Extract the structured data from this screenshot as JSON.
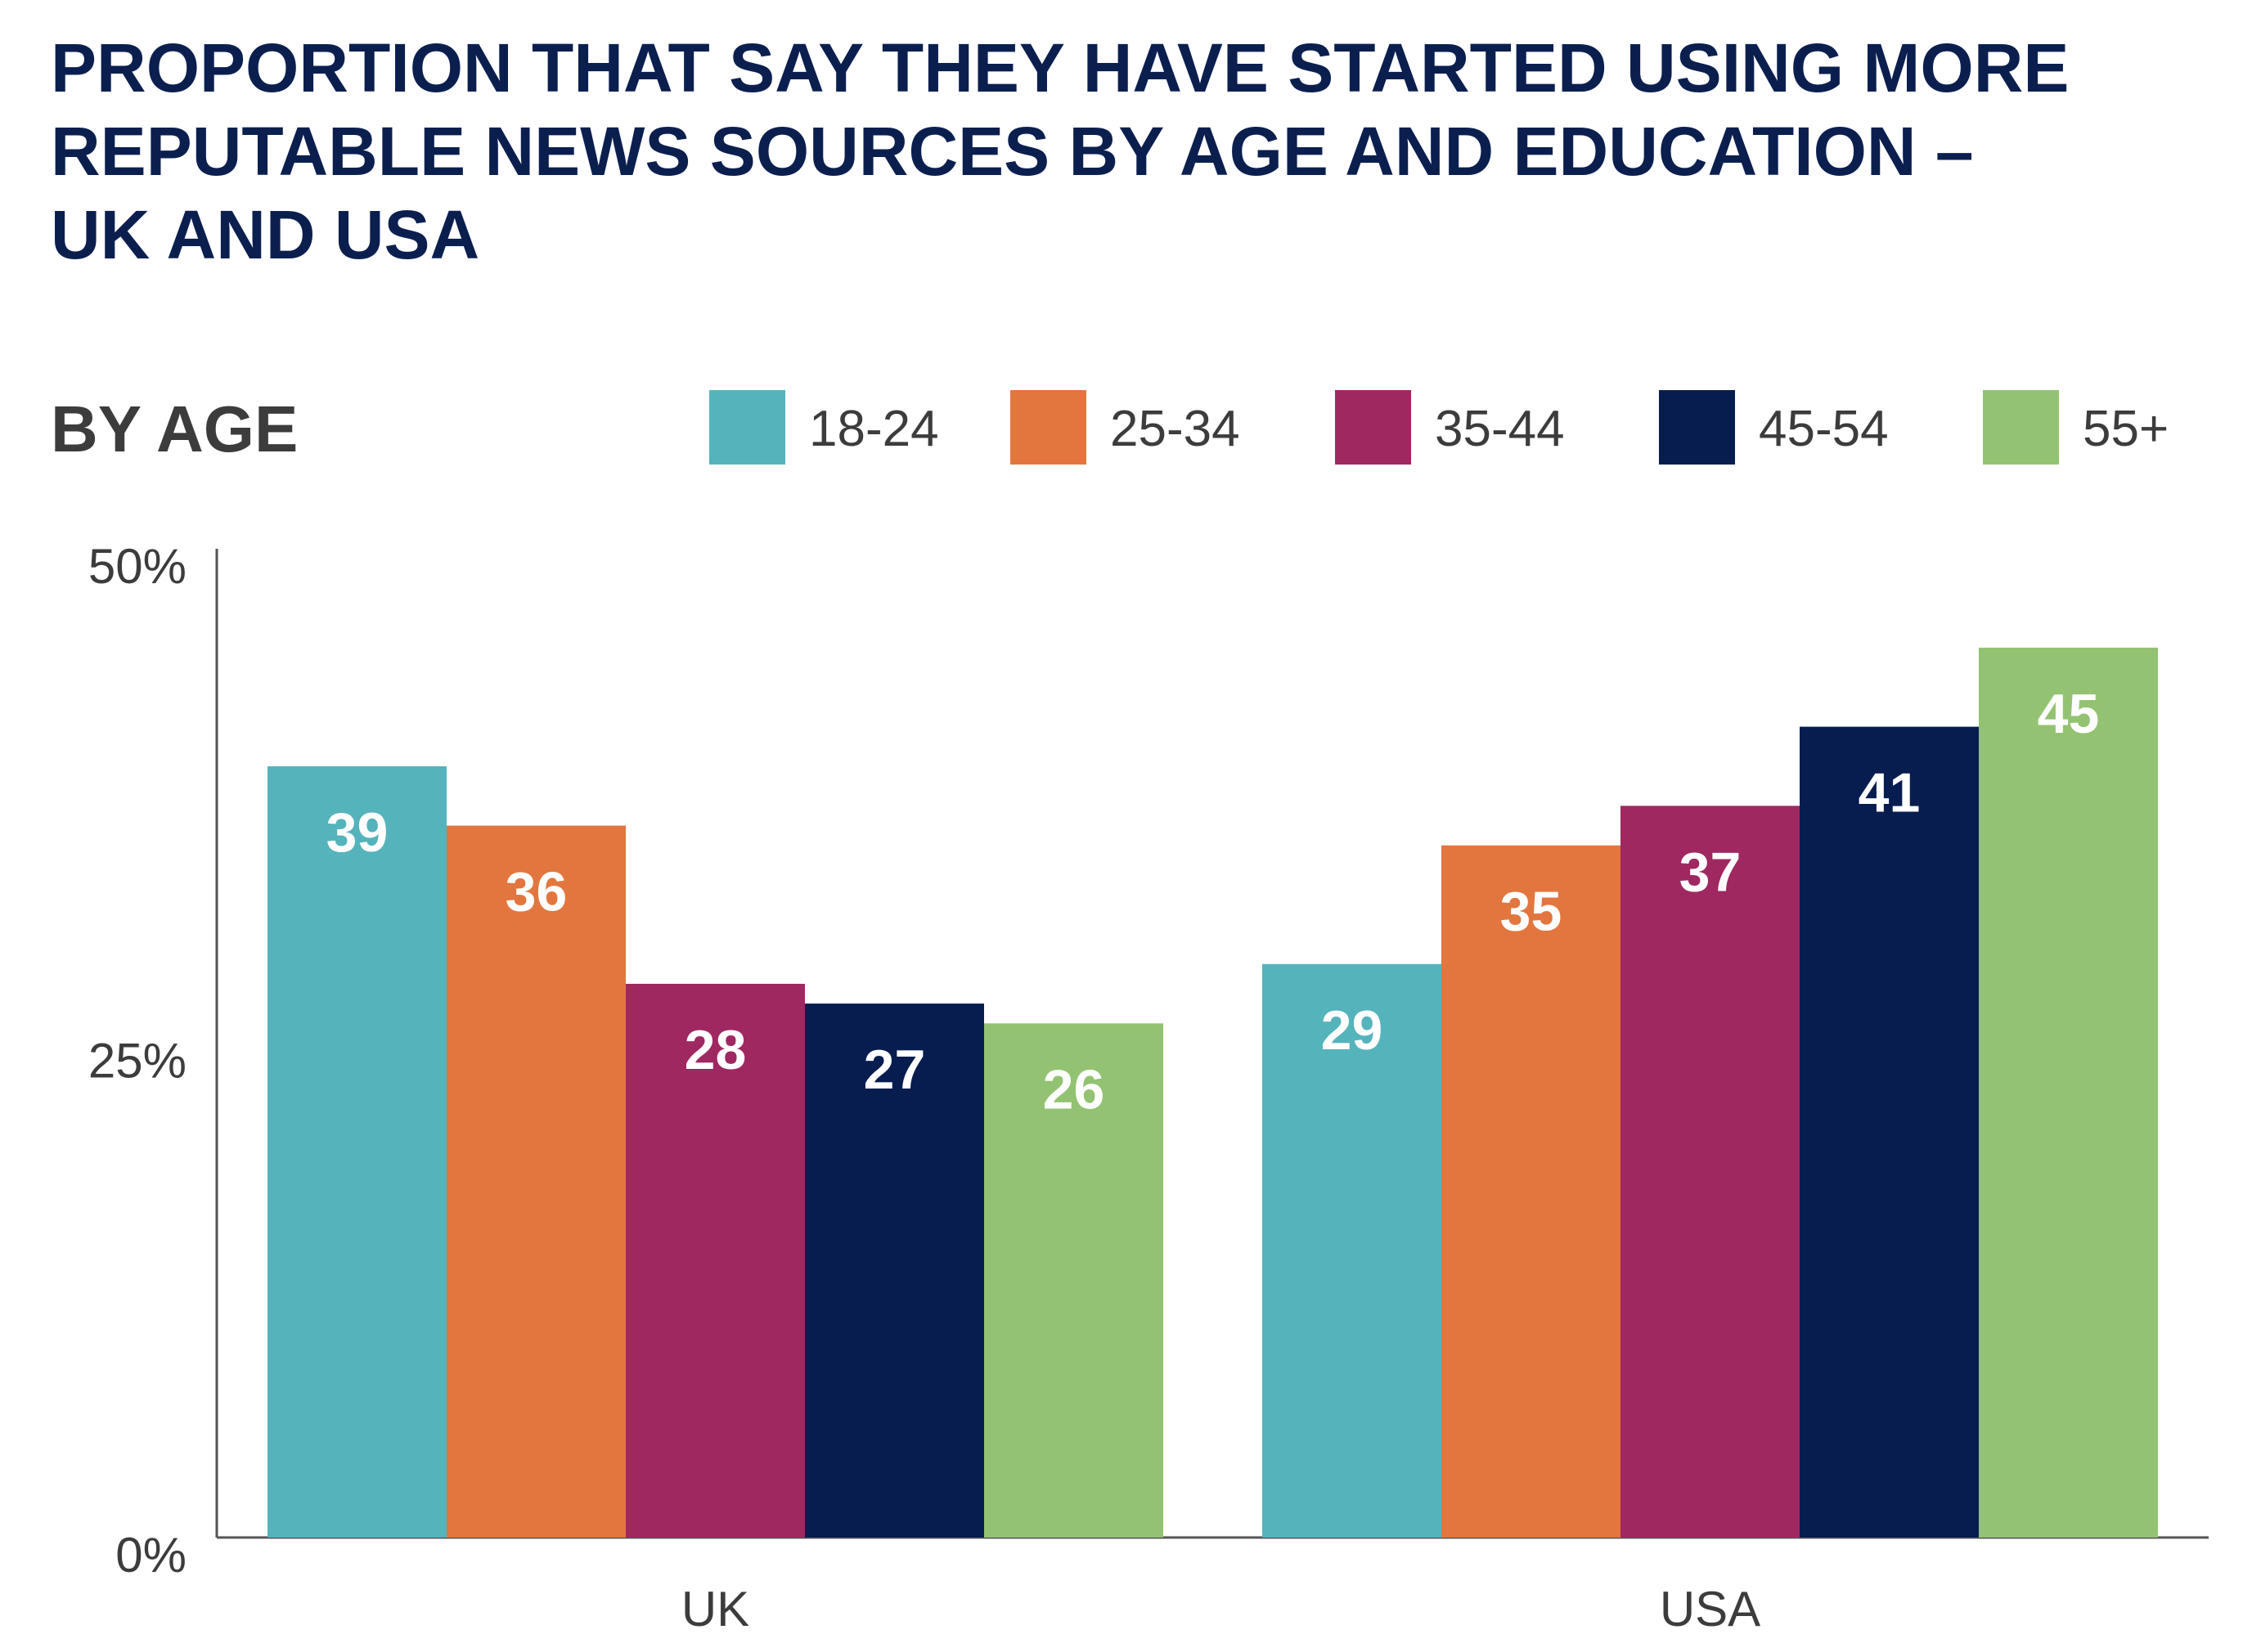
{
  "chart_data": {
    "type": "bar",
    "title": [
      "PROPORTION THAT SAY THEY HAVE STARTED USING MORE",
      "REPUTABLE NEWS SOURCES BY AGE AND EDUCATION –",
      "UK AND USA"
    ],
    "subtitle": "BY AGE",
    "categories": [
      "UK",
      "USA"
    ],
    "series": [
      {
        "name": "18-24",
        "color": "#55b3bc",
        "values": [
          39,
          29
        ]
      },
      {
        "name": "25-34",
        "color": "#e2763e",
        "values": [
          36,
          35
        ]
      },
      {
        "name": "35-44",
        "color": "#9f2861",
        "values": [
          28,
          37
        ]
      },
      {
        "name": "45-54",
        "color": "#071d4f",
        "values": [
          27,
          41
        ]
      },
      {
        "name": "55+",
        "color": "#93c372",
        "values": [
          26,
          45
        ]
      }
    ],
    "ylim": [
      0,
      50
    ],
    "yticks": [
      "0%",
      "25%",
      "50%"
    ],
    "ytick_values": [
      0,
      25,
      50
    ],
    "legend": "top-right",
    "grid": false,
    "data_labels": true
  }
}
